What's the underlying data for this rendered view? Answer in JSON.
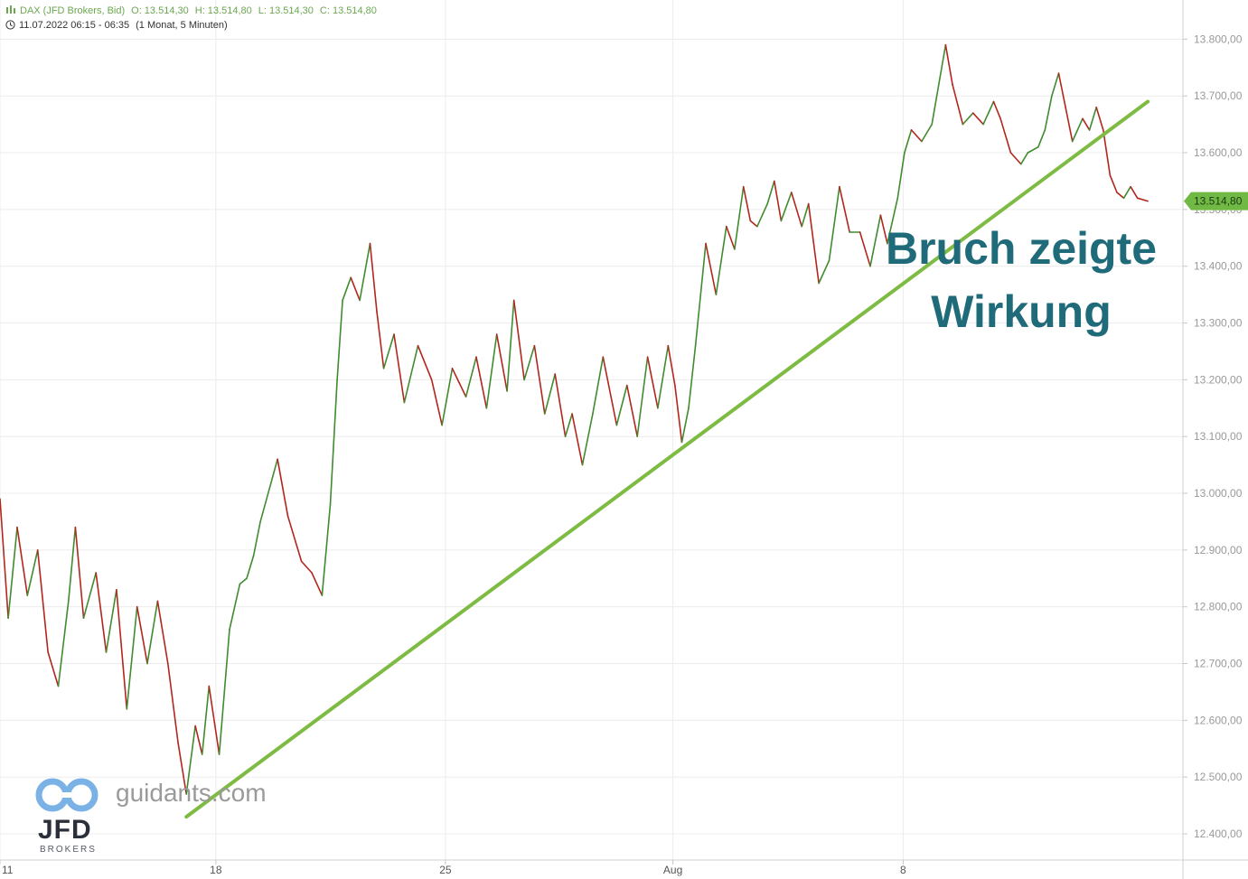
{
  "header": {
    "symbol": "DAX (JFD Brokers, Bid)",
    "open": "O: 13.514,30",
    "high": "H: 13.514,80",
    "low": "L: 13.514,30",
    "close": "C: 13.514,80",
    "range": "11.07.2022 06:15 - 06:35",
    "period": "(1 Monat, 5 Minuten)"
  },
  "annotation": {
    "line1": "Bruch zeigte",
    "line2": "Wirkung"
  },
  "brand": {
    "site": "guidants.com",
    "name": "JFD",
    "sub": "BROKERS"
  },
  "chart_data": {
    "type": "line",
    "instrument": "DAX (JFD Brokers, Bid)",
    "interval": "5 Minuten",
    "x_labels": [
      "11",
      "18",
      "25",
      "Aug",
      "8"
    ],
    "y_ticks": [
      "12.400,00",
      "12.500,00",
      "12.600,00",
      "12.700,00",
      "12.800,00",
      "12.900,00",
      "13.000,00",
      "13.100,00",
      "13.200,00",
      "13.300,00",
      "13.400,00",
      "13.500,00",
      "13.600,00",
      "13.700,00",
      "13.800,00"
    ],
    "ylim": [
      12380,
      13830
    ],
    "last_price": 13514.8,
    "last_price_label": "13.514,80",
    "colors": {
      "up": "#3f8b2e",
      "down": "#b3261e",
      "trendline": "#7dbb42",
      "price_tag": "#6fb944",
      "grid": "#ececec"
    },
    "series": [
      {
        "values": [
          [
            0,
            12990
          ],
          [
            0.12,
            12780
          ],
          [
            0.25,
            12940
          ],
          [
            0.4,
            12820
          ],
          [
            0.55,
            12900
          ],
          [
            0.7,
            12720
          ],
          [
            0.85,
            12660
          ],
          [
            1.0,
            12810
          ],
          [
            1.1,
            12940
          ],
          [
            1.22,
            12780
          ],
          [
            1.4,
            12860
          ],
          [
            1.55,
            12720
          ],
          [
            1.7,
            12830
          ],
          [
            1.85,
            12620
          ],
          [
            2.0,
            12800
          ],
          [
            2.15,
            12700
          ],
          [
            2.3,
            12810
          ],
          [
            2.45,
            12700
          ],
          [
            2.6,
            12560
          ],
          [
            2.72,
            12470
          ],
          [
            2.85,
            12590
          ],
          [
            2.95,
            12540
          ],
          [
            3.05,
            12660
          ],
          [
            3.2,
            12540
          ],
          [
            3.35,
            12760
          ],
          [
            3.5,
            12840
          ],
          [
            3.6,
            12850
          ],
          [
            3.7,
            12890
          ],
          [
            3.8,
            12950
          ],
          [
            4.05,
            13060
          ],
          [
            4.2,
            12960
          ],
          [
            4.4,
            12880
          ],
          [
            4.55,
            12860
          ],
          [
            4.7,
            12820
          ],
          [
            4.82,
            12980
          ],
          [
            4.92,
            13200
          ],
          [
            5.0,
            13340
          ],
          [
            5.12,
            13380
          ],
          [
            5.25,
            13340
          ],
          [
            5.4,
            13440
          ],
          [
            5.5,
            13320
          ],
          [
            5.6,
            13220
          ],
          [
            5.75,
            13280
          ],
          [
            5.9,
            13160
          ],
          [
            6.1,
            13260
          ],
          [
            6.3,
            13200
          ],
          [
            6.45,
            13120
          ],
          [
            6.6,
            13220
          ],
          [
            6.8,
            13170
          ],
          [
            6.95,
            13240
          ],
          [
            7.1,
            13150
          ],
          [
            7.25,
            13280
          ],
          [
            7.4,
            13180
          ],
          [
            7.5,
            13340
          ],
          [
            7.65,
            13200
          ],
          [
            7.8,
            13260
          ],
          [
            7.95,
            13140
          ],
          [
            8.1,
            13210
          ],
          [
            8.25,
            13100
          ],
          [
            8.35,
            13140
          ],
          [
            8.5,
            13050
          ],
          [
            8.65,
            13140
          ],
          [
            8.8,
            13240
          ],
          [
            9.0,
            13120
          ],
          [
            9.15,
            13190
          ],
          [
            9.3,
            13100
          ],
          [
            9.45,
            13240
          ],
          [
            9.6,
            13150
          ],
          [
            9.75,
            13260
          ],
          [
            9.85,
            13190
          ],
          [
            9.95,
            13090
          ],
          [
            10.05,
            13150
          ],
          [
            10.15,
            13260
          ],
          [
            10.3,
            13440
          ],
          [
            10.45,
            13350
          ],
          [
            10.6,
            13470
          ],
          [
            10.72,
            13430
          ],
          [
            10.85,
            13540
          ],
          [
            10.95,
            13480
          ],
          [
            11.05,
            13470
          ],
          [
            11.2,
            13510
          ],
          [
            11.3,
            13550
          ],
          [
            11.4,
            13480
          ],
          [
            11.55,
            13530
          ],
          [
            11.7,
            13470
          ],
          [
            11.8,
            13510
          ],
          [
            11.95,
            13370
          ],
          [
            12.1,
            13410
          ],
          [
            12.25,
            13540
          ],
          [
            12.4,
            13460
          ],
          [
            12.55,
            13460
          ],
          [
            12.7,
            13400
          ],
          [
            12.85,
            13490
          ],
          [
            12.95,
            13440
          ],
          [
            13.1,
            13520
          ],
          [
            13.2,
            13600
          ],
          [
            13.3,
            13640
          ],
          [
            13.45,
            13620
          ],
          [
            13.6,
            13650
          ],
          [
            13.7,
            13720
          ],
          [
            13.8,
            13790
          ],
          [
            13.9,
            13720
          ],
          [
            14.05,
            13650
          ],
          [
            14.2,
            13670
          ],
          [
            14.35,
            13650
          ],
          [
            14.5,
            13690
          ],
          [
            14.6,
            13660
          ],
          [
            14.75,
            13600
          ],
          [
            14.9,
            13580
          ],
          [
            15.0,
            13600
          ],
          [
            15.15,
            13610
          ],
          [
            15.25,
            13640
          ],
          [
            15.35,
            13700
          ],
          [
            15.45,
            13740
          ],
          [
            15.55,
            13680
          ],
          [
            15.65,
            13620
          ],
          [
            15.8,
            13660
          ],
          [
            15.9,
            13640
          ],
          [
            16.0,
            13680
          ],
          [
            16.1,
            13640
          ],
          [
            16.2,
            13560
          ],
          [
            16.3,
            13530
          ],
          [
            16.4,
            13520
          ],
          [
            16.5,
            13540
          ],
          [
            16.6,
            13520
          ],
          [
            16.75,
            13514.8
          ]
        ]
      }
    ],
    "trendline": [
      [
        2.72,
        12430
      ],
      [
        16.75,
        13690
      ]
    ]
  }
}
